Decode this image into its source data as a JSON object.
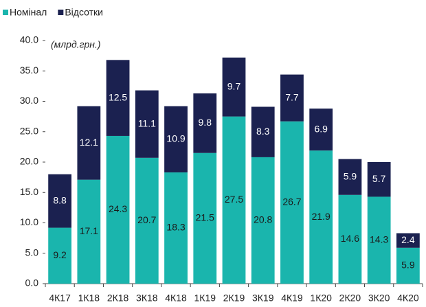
{
  "chart_data": {
    "type": "stacked_bar",
    "annotation": "(млрд.грн.)",
    "categories": [
      "4К17",
      "1К18",
      "2К18",
      "3К18",
      "4К18",
      "1К19",
      "2К19",
      "3К19",
      "4К19",
      "1К20",
      "2К20",
      "3К20",
      "4К20"
    ],
    "series": [
      {
        "name": "Номінал",
        "color": "#1ab5ad",
        "values": [
          9.2,
          17.1,
          24.3,
          20.7,
          18.3,
          21.5,
          27.5,
          20.8,
          26.7,
          21.9,
          14.6,
          14.3,
          5.9
        ]
      },
      {
        "name": "Відсотки",
        "color": "#1b2150",
        "values": [
          8.8,
          12.1,
          12.5,
          11.1,
          10.9,
          9.8,
          9.7,
          8.3,
          7.7,
          6.9,
          5.9,
          5.7,
          2.4
        ]
      }
    ],
    "ylim": [
      0,
      40
    ],
    "yticks": [
      {
        "value": 0,
        "label": "0.0"
      },
      {
        "value": 5,
        "label": "5.0"
      },
      {
        "value": 10,
        "label": "10.0"
      },
      {
        "value": 15,
        "label": "15.0"
      },
      {
        "value": 20,
        "label": "20.0"
      },
      {
        "value": 25,
        "label": "25.0"
      },
      {
        "value": 30,
        "label": "30.0"
      },
      {
        "value": 35,
        "label": "35.0"
      },
      {
        "value": 40,
        "label": "40.0"
      }
    ],
    "legend": "top-left"
  }
}
